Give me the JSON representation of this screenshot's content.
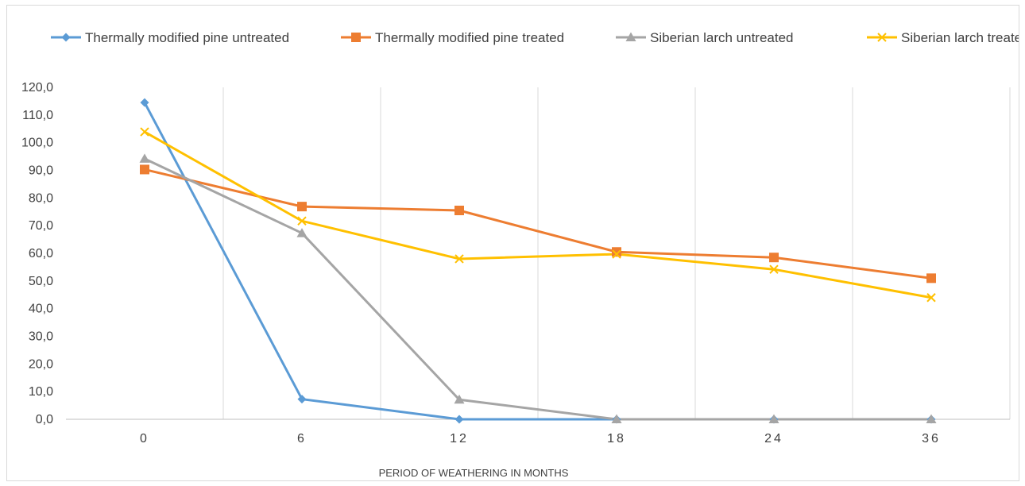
{
  "chart_data": {
    "type": "line",
    "title": "",
    "xlabel": "PERIOD OF WEATHERING IN MONTHS",
    "ylabel": "",
    "categories": [
      "0",
      "6",
      "12",
      "18",
      "24",
      "36"
    ],
    "ylim": [
      0,
      120
    ],
    "yticks": [
      "0,0",
      "10,0",
      "20,0",
      "30,0",
      "40,0",
      "50,0",
      "60,0",
      "70,0",
      "80,0",
      "90,0",
      "100,0",
      "110,0",
      "120,0"
    ],
    "grid": "vertical",
    "legend_position": "top",
    "series": [
      {
        "name": "Thermally modified pine untreated",
        "color": "#5B9BD5",
        "marker": "diamond",
        "values": [
          114.5,
          7.3,
          0.0,
          0.0,
          0.0,
          0.0
        ]
      },
      {
        "name": "Thermally modified pine treated",
        "color": "#ED7D31",
        "marker": "square",
        "values": [
          90.3,
          76.9,
          75.5,
          60.5,
          58.5,
          51.0
        ]
      },
      {
        "name": "Siberian larch untreated",
        "color": "#A5A5A5",
        "marker": "triangle",
        "values": [
          94.2,
          67.3,
          7.1,
          0.0,
          0.0,
          0.0
        ]
      },
      {
        "name": "Siberian larch treated",
        "color": "#FFC000",
        "marker": "x",
        "values": [
          103.9,
          71.7,
          58.0,
          59.7,
          54.2,
          44.0
        ]
      }
    ]
  }
}
